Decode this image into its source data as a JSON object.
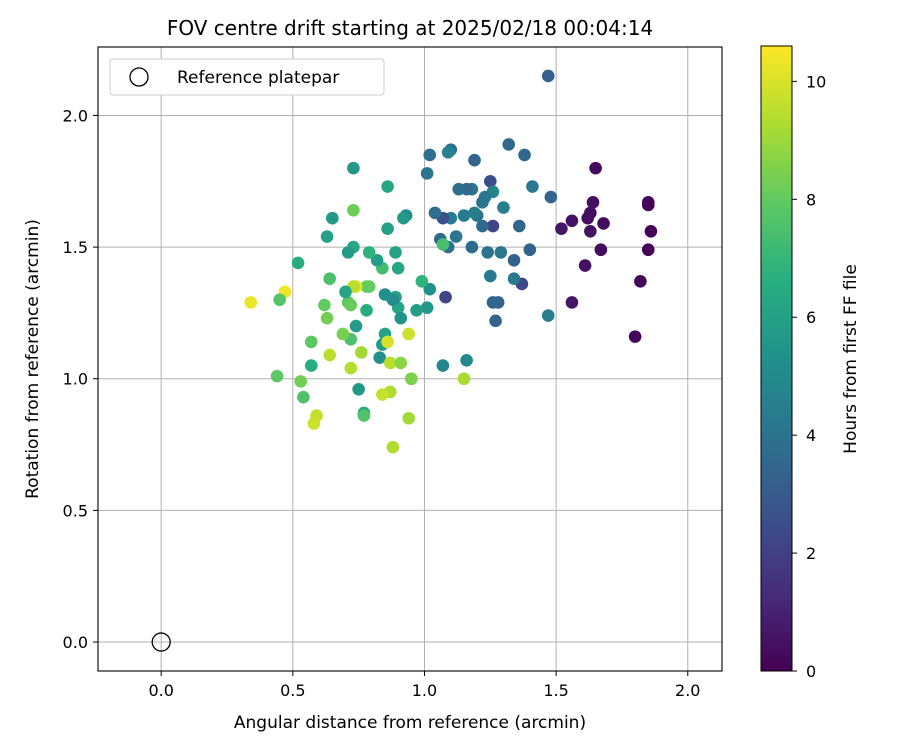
{
  "chart_data": {
    "type": "scatter",
    "title": "FOV centre drift starting at 2025/02/18 00:04:14",
    "xlabel": "Angular distance from reference (arcmin)",
    "ylabel": "Rotation from reference (arcmin)",
    "xlim": [
      -0.24,
      2.13
    ],
    "ylim": [
      -0.11,
      2.26
    ],
    "xticks": [
      0.0,
      0.5,
      1.0,
      1.5,
      2.0
    ],
    "xtick_labels": [
      "0.0",
      "0.5",
      "1.0",
      "1.5",
      "2.0"
    ],
    "yticks": [
      0.0,
      0.5,
      1.0,
      1.5,
      2.0
    ],
    "ytick_labels": [
      "0.0",
      "0.5",
      "1.0",
      "1.5",
      "2.0"
    ],
    "grid": true,
    "legend": {
      "position": "top-left",
      "entries": [
        "Reference platepar"
      ]
    },
    "reference_point": {
      "x": 0.0,
      "y": 0.0,
      "marker": "open-circle"
    },
    "colorbar": {
      "label": "Hours from first FF file",
      "colormap": "viridis",
      "range": [
        0,
        10.6
      ],
      "ticks": [
        0,
        2,
        4,
        6,
        8,
        10
      ],
      "tick_labels": [
        "0",
        "2",
        "4",
        "6",
        "8",
        "10"
      ]
    },
    "points": [
      {
        "x": 1.85,
        "y": 1.67,
        "c": 0.1
      },
      {
        "x": 1.85,
        "y": 1.66,
        "c": 0.1
      },
      {
        "x": 1.86,
        "y": 1.56,
        "c": 0.1
      },
      {
        "x": 1.85,
        "y": 1.49,
        "c": 0.1
      },
      {
        "x": 1.82,
        "y": 1.37,
        "c": 0.2
      },
      {
        "x": 1.8,
        "y": 1.16,
        "c": 0.2
      },
      {
        "x": 1.68,
        "y": 1.59,
        "c": 0.3
      },
      {
        "x": 1.67,
        "y": 1.49,
        "c": 0.3
      },
      {
        "x": 1.65,
        "y": 1.8,
        "c": 0.3
      },
      {
        "x": 1.64,
        "y": 1.67,
        "c": 0.4
      },
      {
        "x": 1.63,
        "y": 1.63,
        "c": 0.4
      },
      {
        "x": 1.62,
        "y": 1.61,
        "c": 0.4
      },
      {
        "x": 1.63,
        "y": 1.56,
        "c": 0.5
      },
      {
        "x": 1.61,
        "y": 1.43,
        "c": 0.5
      },
      {
        "x": 1.56,
        "y": 1.6,
        "c": 0.5
      },
      {
        "x": 1.52,
        "y": 1.57,
        "c": 0.6
      },
      {
        "x": 1.56,
        "y": 1.29,
        "c": 0.6
      },
      {
        "x": 1.47,
        "y": 2.15,
        "c": 3.3
      },
      {
        "x": 1.48,
        "y": 1.69,
        "c": 3.4
      },
      {
        "x": 1.47,
        "y": 1.24,
        "c": 4.5
      },
      {
        "x": 1.41,
        "y": 1.73,
        "c": 4.2
      },
      {
        "x": 1.4,
        "y": 1.49,
        "c": 3.4
      },
      {
        "x": 1.38,
        "y": 1.85,
        "c": 3.5
      },
      {
        "x": 1.37,
        "y": 1.36,
        "c": 2.3
      },
      {
        "x": 1.36,
        "y": 1.58,
        "c": 3.5
      },
      {
        "x": 1.34,
        "y": 1.45,
        "c": 3.3
      },
      {
        "x": 1.34,
        "y": 1.38,
        "c": 4.3
      },
      {
        "x": 1.32,
        "y": 1.89,
        "c": 3.5
      },
      {
        "x": 1.3,
        "y": 1.65,
        "c": 4.5
      },
      {
        "x": 1.29,
        "y": 1.48,
        "c": 4.2
      },
      {
        "x": 1.28,
        "y": 1.29,
        "c": 3.4
      },
      {
        "x": 1.27,
        "y": 1.22,
        "c": 3.4
      },
      {
        "x": 1.26,
        "y": 1.29,
        "c": 3.5
      },
      {
        "x": 1.26,
        "y": 1.58,
        "c": 2.2
      },
      {
        "x": 1.25,
        "y": 1.75,
        "c": 2.5
      },
      {
        "x": 1.26,
        "y": 1.71,
        "c": 4.8
      },
      {
        "x": 1.25,
        "y": 1.39,
        "c": 4.3
      },
      {
        "x": 1.24,
        "y": 1.48,
        "c": 4.0
      },
      {
        "x": 1.23,
        "y": 1.69,
        "c": 4.2
      },
      {
        "x": 1.22,
        "y": 1.58,
        "c": 3.6
      },
      {
        "x": 1.22,
        "y": 1.67,
        "c": 4.0
      },
      {
        "x": 1.2,
        "y": 1.62,
        "c": 3.8
      },
      {
        "x": 1.19,
        "y": 1.83,
        "c": 3.4
      },
      {
        "x": 1.19,
        "y": 1.63,
        "c": 4.5
      },
      {
        "x": 1.18,
        "y": 1.72,
        "c": 4.1
      },
      {
        "x": 1.18,
        "y": 1.5,
        "c": 3.7
      },
      {
        "x": 1.16,
        "y": 1.72,
        "c": 3.6
      },
      {
        "x": 1.15,
        "y": 1.62,
        "c": 4.3
      },
      {
        "x": 1.13,
        "y": 1.72,
        "c": 3.9
      },
      {
        "x": 1.12,
        "y": 1.54,
        "c": 4.2
      },
      {
        "x": 1.1,
        "y": 1.87,
        "c": 3.8
      },
      {
        "x": 1.09,
        "y": 1.86,
        "c": 4.7
      },
      {
        "x": 1.1,
        "y": 1.61,
        "c": 4.3
      },
      {
        "x": 1.09,
        "y": 1.5,
        "c": 3.9
      },
      {
        "x": 1.08,
        "y": 1.31,
        "c": 2.2
      },
      {
        "x": 1.07,
        "y": 1.61,
        "c": 2.6
      },
      {
        "x": 1.06,
        "y": 1.53,
        "c": 3.7
      },
      {
        "x": 1.07,
        "y": 1.51,
        "c": 7.4
      },
      {
        "x": 1.07,
        "y": 1.05,
        "c": 4.8
      },
      {
        "x": 1.04,
        "y": 1.63,
        "c": 3.8
      },
      {
        "x": 1.02,
        "y": 1.85,
        "c": 3.8
      },
      {
        "x": 1.01,
        "y": 1.78,
        "c": 4.0
      },
      {
        "x": 1.02,
        "y": 1.34,
        "c": 5.3
      },
      {
        "x": 1.01,
        "y": 1.27,
        "c": 5.6
      },
      {
        "x": 0.99,
        "y": 1.37,
        "c": 6.8
      },
      {
        "x": 0.97,
        "y": 1.26,
        "c": 5.9
      },
      {
        "x": 1.16,
        "y": 1.07,
        "c": 5.0
      },
      {
        "x": 1.15,
        "y": 1.0,
        "c": 9.2
      },
      {
        "x": 0.93,
        "y": 1.62,
        "c": 5.1
      },
      {
        "x": 0.92,
        "y": 1.61,
        "c": 5.7
      },
      {
        "x": 0.89,
        "y": 1.48,
        "c": 6.1
      },
      {
        "x": 0.9,
        "y": 1.42,
        "c": 6.3
      },
      {
        "x": 0.89,
        "y": 1.31,
        "c": 6.0
      },
      {
        "x": 0.9,
        "y": 1.27,
        "c": 6.2
      },
      {
        "x": 0.91,
        "y": 1.23,
        "c": 5.4
      },
      {
        "x": 0.88,
        "y": 1.3,
        "c": 5.1
      },
      {
        "x": 0.86,
        "y": 1.73,
        "c": 6.2
      },
      {
        "x": 0.86,
        "y": 1.57,
        "c": 6.0
      },
      {
        "x": 0.84,
        "y": 1.42,
        "c": 7.3
      },
      {
        "x": 0.85,
        "y": 1.32,
        "c": 5.3
      },
      {
        "x": 0.85,
        "y": 1.17,
        "c": 6.1
      },
      {
        "x": 0.84,
        "y": 1.13,
        "c": 5.8
      },
      {
        "x": 0.82,
        "y": 1.45,
        "c": 5.9
      },
      {
        "x": 0.83,
        "y": 1.08,
        "c": 5.3
      },
      {
        "x": 0.79,
        "y": 1.48,
        "c": 6.8
      },
      {
        "x": 0.78,
        "y": 1.35,
        "c": 8.2
      },
      {
        "x": 0.79,
        "y": 1.35,
        "c": 8.0
      },
      {
        "x": 0.78,
        "y": 1.26,
        "c": 6.6
      },
      {
        "x": 0.77,
        "y": 0.87,
        "c": 6.5
      },
      {
        "x": 0.77,
        "y": 0.86,
        "c": 7.6
      },
      {
        "x": 0.75,
        "y": 0.96,
        "c": 5.6
      },
      {
        "x": 0.73,
        "y": 1.8,
        "c": 5.6
      },
      {
        "x": 0.73,
        "y": 1.64,
        "c": 8.2
      },
      {
        "x": 0.73,
        "y": 1.5,
        "c": 6.3
      },
      {
        "x": 0.74,
        "y": 1.2,
        "c": 5.8
      },
      {
        "x": 0.74,
        "y": 1.35,
        "c": 10.2
      },
      {
        "x": 0.73,
        "y": 1.35,
        "c": 9.5
      },
      {
        "x": 0.71,
        "y": 1.48,
        "c": 5.7
      },
      {
        "x": 0.71,
        "y": 1.29,
        "c": 7.8
      },
      {
        "x": 0.7,
        "y": 1.33,
        "c": 6.2
      },
      {
        "x": 0.72,
        "y": 1.28,
        "c": 8.1
      },
      {
        "x": 0.72,
        "y": 1.15,
        "c": 7.5
      },
      {
        "x": 0.72,
        "y": 1.04,
        "c": 9.4
      },
      {
        "x": 0.69,
        "y": 1.17,
        "c": 8.4
      },
      {
        "x": 0.65,
        "y": 1.61,
        "c": 5.7
      },
      {
        "x": 0.64,
        "y": 1.38,
        "c": 7.5
      },
      {
        "x": 0.64,
        "y": 1.09,
        "c": 9.5
      },
      {
        "x": 0.63,
        "y": 1.54,
        "c": 6.0
      },
      {
        "x": 0.63,
        "y": 1.23,
        "c": 8.3
      },
      {
        "x": 0.62,
        "y": 1.28,
        "c": 8.0
      },
      {
        "x": 0.59,
        "y": 0.86,
        "c": 9.6
      },
      {
        "x": 0.58,
        "y": 0.83,
        "c": 9.8
      },
      {
        "x": 0.57,
        "y": 1.05,
        "c": 6.6
      },
      {
        "x": 0.57,
        "y": 1.14,
        "c": 7.9
      },
      {
        "x": 0.54,
        "y": 0.93,
        "c": 7.6
      },
      {
        "x": 0.52,
        "y": 1.44,
        "c": 6.6
      },
      {
        "x": 0.53,
        "y": 0.99,
        "c": 8.3
      },
      {
        "x": 0.47,
        "y": 1.33,
        "c": 10.4
      },
      {
        "x": 0.45,
        "y": 1.3,
        "c": 7.7
      },
      {
        "x": 0.44,
        "y": 1.01,
        "c": 7.9
      },
      {
        "x": 0.34,
        "y": 1.29,
        "c": 10.3
      },
      {
        "x": 0.86,
        "y": 1.14,
        "c": 10.0
      },
      {
        "x": 0.87,
        "y": 1.06,
        "c": 9.5
      },
      {
        "x": 0.87,
        "y": 0.95,
        "c": 9.3
      },
      {
        "x": 0.84,
        "y": 0.94,
        "c": 9.7
      },
      {
        "x": 0.88,
        "y": 0.74,
        "c": 9.3
      },
      {
        "x": 0.94,
        "y": 1.17,
        "c": 9.8
      },
      {
        "x": 0.94,
        "y": 0.85,
        "c": 9.1
      },
      {
        "x": 0.95,
        "y": 1.0,
        "c": 8.6
      },
      {
        "x": 0.76,
        "y": 1.1,
        "c": 9.1
      },
      {
        "x": 0.91,
        "y": 1.06,
        "c": 8.7
      },
      {
        "x": 0.95,
        "y": 1.0,
        "c": 8.5
      }
    ]
  }
}
